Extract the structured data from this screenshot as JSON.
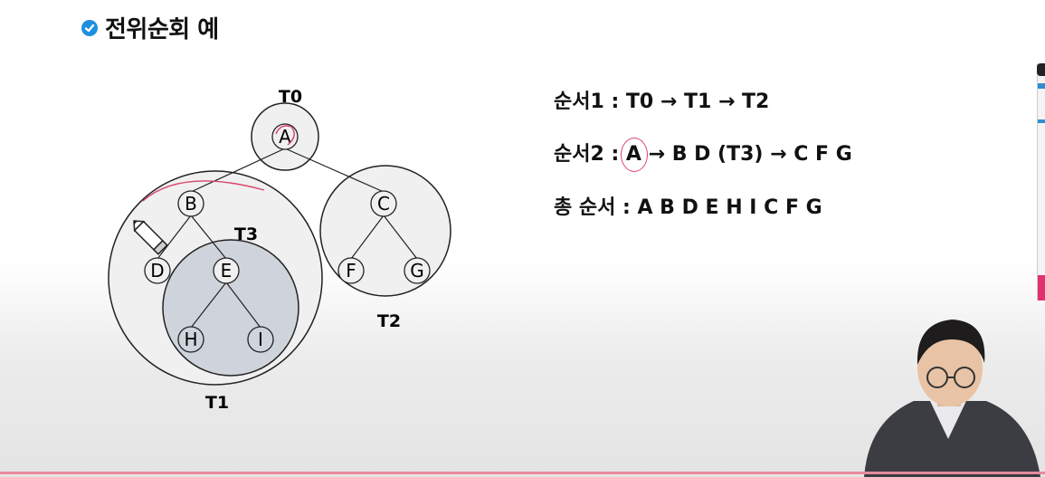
{
  "slide": {
    "title": "전위순회 예"
  },
  "tree": {
    "nodes": {
      "a": "A",
      "b": "B",
      "c": "C",
      "d": "D",
      "e": "E",
      "f": "F",
      "g": "G",
      "h": "H",
      "i": "I"
    },
    "subtree_labels": {
      "t0": "T0",
      "t1": "T1",
      "t2": "T2",
      "t3": "T3"
    }
  },
  "orders": {
    "order1": "순서1 : T0 → T1 → T2",
    "order2_prefix": "순서2 : ",
    "order2_node": "A",
    "order2_rest": " → B D (T3) → C F G",
    "total": "총 순서 : A  B  D  E  H  I  C  F  G"
  },
  "colors": {
    "accent": "#1f8fe0",
    "annotation": "#d9456c",
    "t3_fill": "#cfd4dc"
  },
  "icons": {
    "title_badge": "check-badge-icon",
    "pencil": "pencil-cursor-icon"
  }
}
